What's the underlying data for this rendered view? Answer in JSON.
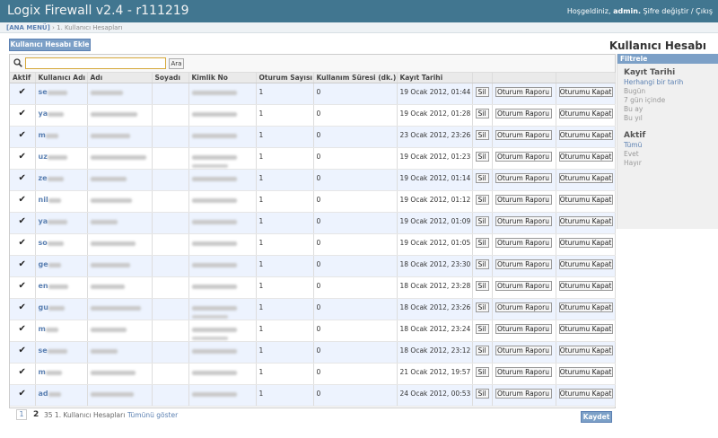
{
  "header": {
    "title": "Logix Firewall v2.4 - r111219",
    "welcome": "Hoşgeldiniz,",
    "user": "admin.",
    "change_password": "Şifre değiştir",
    "separator": "/",
    "logout": "Çıkış"
  },
  "breadcrumb": {
    "main": "[ANA MENÜ]",
    "separator": "›",
    "current": "1. Kullanıcı Hesapları"
  },
  "page_title": "Kullanıcı Hesabı",
  "add_button": "Kullanıcı Hesabı Ekle",
  "search": {
    "value": "",
    "button": "Ara"
  },
  "table": {
    "columns": [
      "Aktif",
      "Kullanıcı Adı",
      "Adı",
      "Soyadı",
      "Kimlik No",
      "Oturum Sayısı",
      "Kullanım Süresi (dk.)",
      "Kayıt Tarihi",
      "",
      "",
      ""
    ],
    "rows": [
      {
        "user": "se",
        "sessions": "1",
        "usage": "0",
        "date": "19 Ocak 2012, 01:44"
      },
      {
        "user": "ya",
        "sessions": "1",
        "usage": "0",
        "date": "19 Ocak 2012, 01:28"
      },
      {
        "user": "m",
        "sessions": "1",
        "usage": "0",
        "date": "23 Ocak 2012, 23:26"
      },
      {
        "user": "uz",
        "sessions": "1",
        "usage": "0",
        "date": "19 Ocak 2012, 01:23"
      },
      {
        "user": "ze",
        "sessions": "1",
        "usage": "0",
        "date": "19 Ocak 2012, 01:14"
      },
      {
        "user": "nil",
        "sessions": "1",
        "usage": "0",
        "date": "19 Ocak 2012, 01:12"
      },
      {
        "user": "ya",
        "sessions": "1",
        "usage": "0",
        "date": "19 Ocak 2012, 01:09"
      },
      {
        "user": "so",
        "sessions": "1",
        "usage": "0",
        "date": "19 Ocak 2012, 01:05"
      },
      {
        "user": "ge",
        "sessions": "1",
        "usage": "0",
        "date": "18 Ocak 2012, 23:30"
      },
      {
        "user": "en",
        "sessions": "1",
        "usage": "0",
        "date": "18 Ocak 2012, 23:28"
      },
      {
        "user": "gu",
        "sessions": "1",
        "usage": "0",
        "date": "18 Ocak 2012, 23:26"
      },
      {
        "user": "m",
        "sessions": "1",
        "usage": "0",
        "date": "18 Ocak 2012, 23:24"
      },
      {
        "user": "se",
        "sessions": "1",
        "usage": "0",
        "date": "18 Ocak 2012, 23:12"
      },
      {
        "user": "m",
        "sessions": "1",
        "usage": "0",
        "date": "21 Ocak 2012, 19:57"
      },
      {
        "user": "ad",
        "sessions": "1",
        "usage": "0",
        "date": "24 Ocak 2012, 00:53"
      }
    ],
    "actions": {
      "delete": "Sil",
      "report": "Oturum Raporu",
      "close": "Oturumu Kapat"
    }
  },
  "pager": {
    "page1": "1",
    "page2": "2",
    "count": "35 1. Kullanıcı Hesapları",
    "show_all": "Tümünü göster"
  },
  "save_button": "Kaydet",
  "filter": {
    "title": "Filtrele",
    "groups": [
      {
        "title": "Kayıt Tarihi",
        "options": [
          "Herhangi bir tarih",
          "Bugün",
          "7 gün içinde",
          "Bu ay",
          "Bu yıl"
        ]
      },
      {
        "title": "Aktif",
        "options": [
          "Tümü",
          "Evet",
          "Hayır"
        ]
      }
    ]
  }
}
